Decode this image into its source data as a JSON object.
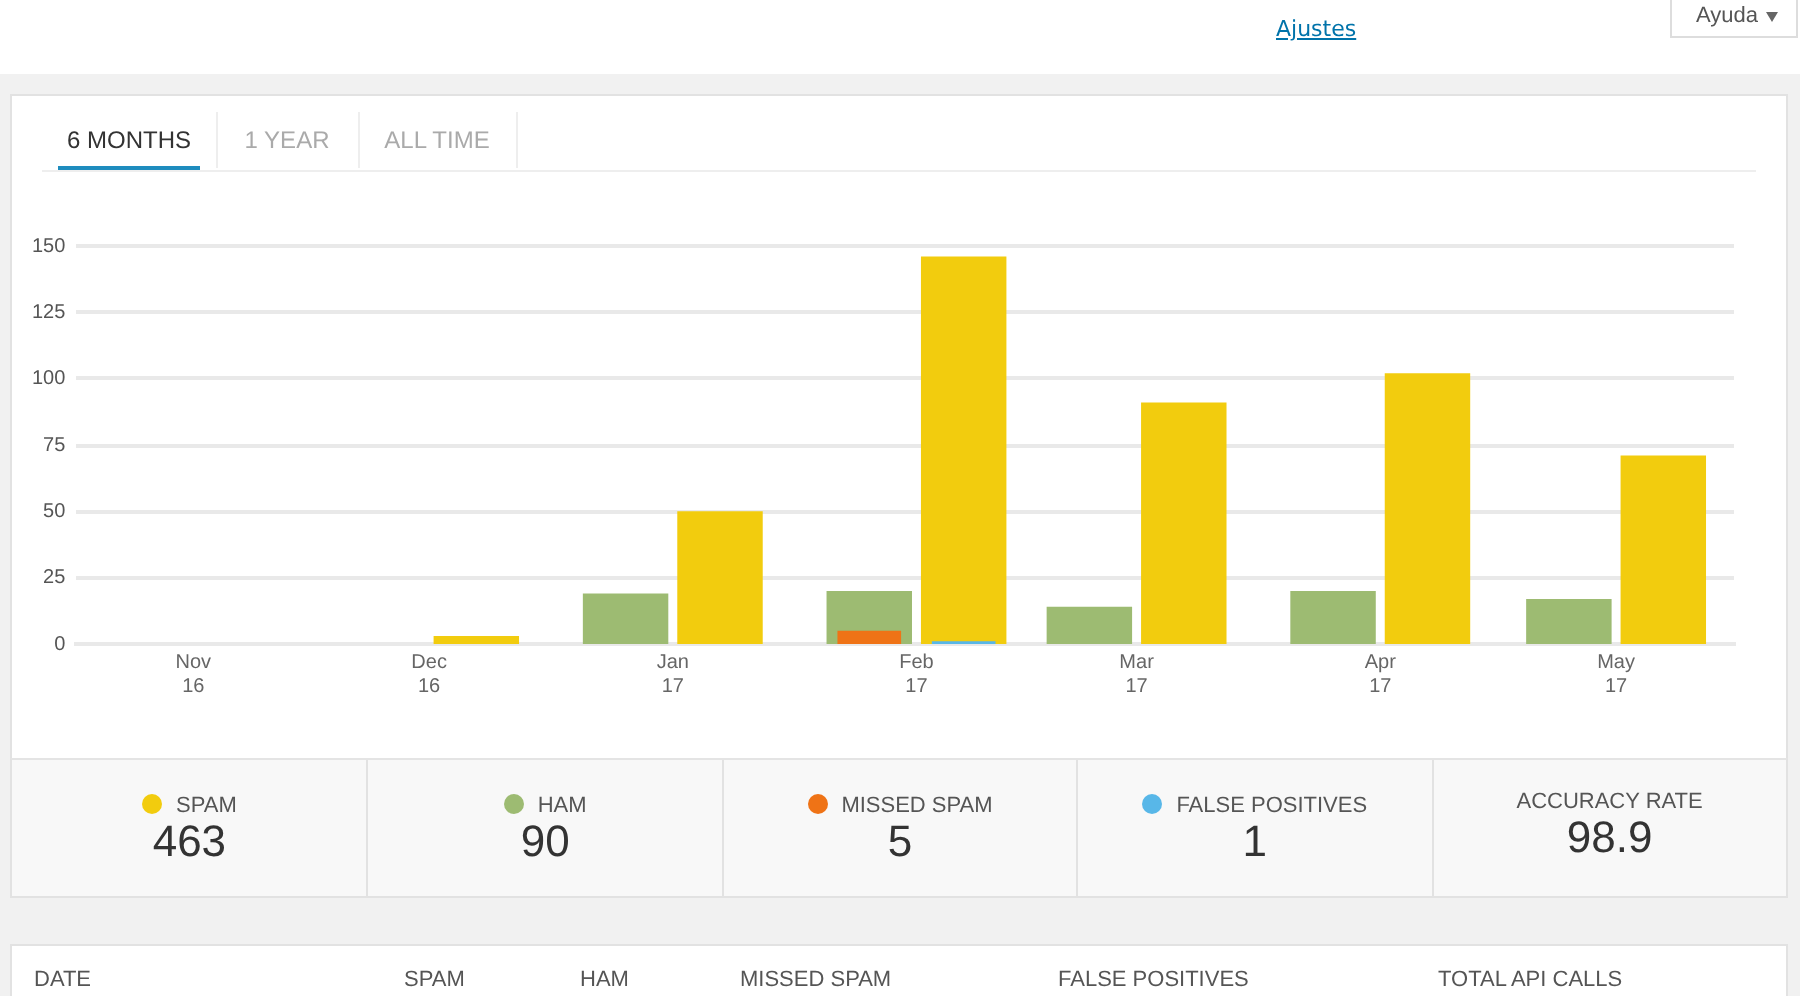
{
  "chart_data": {
    "type": "bar",
    "x": [
      "2016-11",
      "2016-12",
      "2017-01",
      "2017-02",
      "2017-03",
      "2017-04",
      "2017-05"
    ],
    "xlim": [
      "2016-10-17",
      "2017-05-16"
    ],
    "xticks": [
      {
        "value": "2016-11",
        "label": "Nov 16"
      },
      {
        "value": "2016-12",
        "label": "Dec 16"
      },
      {
        "value": "2017-01",
        "label": "Jan 17"
      },
      {
        "value": "2017-02",
        "label": "Feb 17"
      },
      {
        "value": "2017-03",
        "label": "Mar 17"
      },
      {
        "value": "2017-04",
        "label": "Apr 17"
      },
      {
        "value": "2017-05",
        "label": "May 17"
      }
    ],
    "series": [
      {
        "name": "SPAM",
        "color": "#f2cc0e",
        "values": [
          0,
          3,
          50,
          146,
          91,
          102,
          71
        ]
      },
      {
        "name": "HAM",
        "color": "#9dbb72",
        "values": [
          0,
          0,
          19,
          20,
          14,
          20,
          17
        ]
      },
      {
        "name": "MISSED SPAM",
        "color": "#ef7316",
        "values": [
          0,
          0,
          0,
          5,
          0,
          0,
          0
        ]
      },
      {
        "name": "FALSE POSITIVES",
        "color": "#58b7e8",
        "values": [
          0,
          0,
          0,
          1,
          0,
          0,
          0
        ]
      }
    ],
    "ylim": [
      0,
      150
    ],
    "yticks": [
      0,
      25,
      50,
      75,
      100,
      125,
      150
    ],
    "grid": "y",
    "legend": "bottom",
    "annotations": [
      "Ajustes",
      "Ayuda",
      "6 MONTHS",
      "1 YEAR",
      "ALL TIME",
      "463",
      "90",
      "5",
      "1",
      "ACCURACY RATE",
      "98.9",
      "DATE",
      "SPAM",
      "HAM",
      "MISSED SPAM",
      "FALSE POSITIVES",
      "TOTAL API CALLS"
    ]
  }
}
